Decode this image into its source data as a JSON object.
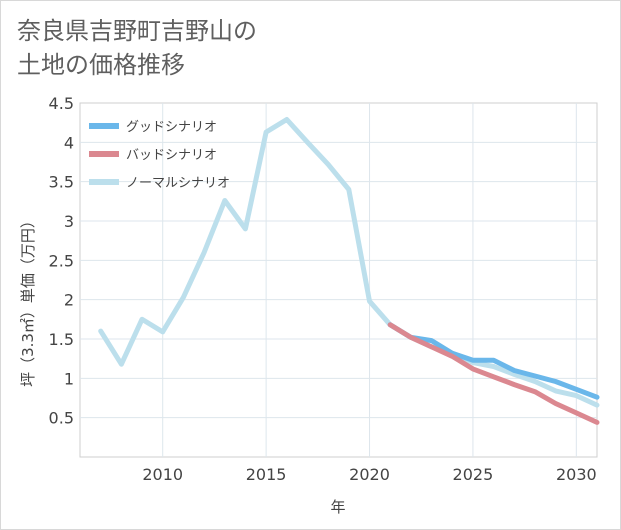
{
  "title_lines": [
    "奈良県吉野町吉野山の",
    "土地の価格推移"
  ],
  "chart_data": {
    "type": "line",
    "title": "奈良県吉野町吉野山の土地の価格推移",
    "xlabel": "年",
    "ylabel": "坪（3.3㎡）単価（万円）",
    "xlim": [
      2006,
      2031
    ],
    "ylim": [
      0,
      4.5
    ],
    "xticks": [
      2010,
      2015,
      2020,
      2025,
      2030
    ],
    "yticks": [
      0.5,
      1,
      1.5,
      2,
      2.5,
      3,
      3.5,
      4,
      4.5
    ],
    "ytick_labels": [
      "0.5",
      "1",
      "1.5",
      "2",
      "2.5",
      "3",
      "3.5",
      "4",
      "4.5"
    ],
    "grid": true,
    "legend_position": "top-left",
    "series": [
      {
        "name": "グッドシナリオ",
        "color": "#6ab7ea",
        "x": [
          2021,
          2022,
          2023,
          2024,
          2025,
          2026,
          2027,
          2028,
          2029,
          2030,
          2031
        ],
        "y": [
          1.68,
          1.52,
          1.48,
          1.32,
          1.23,
          1.23,
          1.1,
          1.03,
          0.96,
          0.86,
          0.76
        ]
      },
      {
        "name": "バッドシナリオ",
        "color": "#db8890",
        "x": [
          2021,
          2022,
          2023,
          2024,
          2025,
          2026,
          2027,
          2028,
          2029,
          2030,
          2031
        ],
        "y": [
          1.68,
          1.52,
          1.4,
          1.28,
          1.12,
          1.02,
          0.92,
          0.83,
          0.68,
          0.56,
          0.44
        ]
      },
      {
        "name": "ノーマルシナリオ",
        "color": "#bcdfec",
        "x": [
          2007,
          2008,
          2009,
          2010,
          2011,
          2012,
          2013,
          2014,
          2015,
          2016,
          2017,
          2018,
          2019,
          2020,
          2021,
          2022,
          2023,
          2024,
          2025,
          2026,
          2027,
          2028,
          2029,
          2030,
          2031
        ],
        "y": [
          1.6,
          1.18,
          1.75,
          1.59,
          2.03,
          2.6,
          3.26,
          2.9,
          4.13,
          4.29,
          4.0,
          3.72,
          3.4,
          1.98,
          1.68,
          1.52,
          1.4,
          1.32,
          1.2,
          1.15,
          1.05,
          0.96,
          0.84,
          0.78,
          0.66
        ]
      }
    ]
  }
}
